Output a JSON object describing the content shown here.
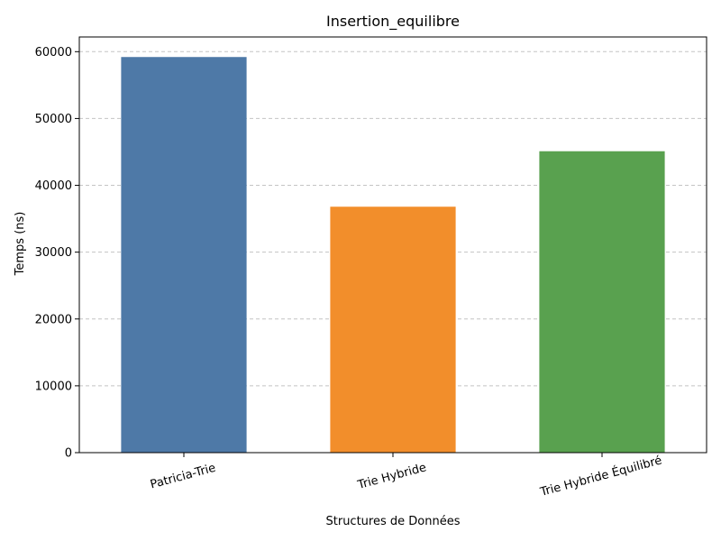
{
  "chart_data": {
    "type": "bar",
    "title": "Insertion_equilibre",
    "xlabel": "Structures de Données",
    "ylabel": "Temps (ns)",
    "categories": [
      "Patricia-Trie",
      "Trie Hybride",
      "Trie Hybride Équilibré"
    ],
    "values": [
      59200,
      36800,
      45100
    ],
    "colors": [
      "#4e79a7",
      "#f28e2b",
      "#59a14f"
    ],
    "ylim": [
      0,
      62200
    ],
    "yticks": [
      0,
      10000,
      20000,
      30000,
      40000,
      50000,
      60000
    ],
    "grid": "y-dashed",
    "xtick_rotation": -15
  }
}
